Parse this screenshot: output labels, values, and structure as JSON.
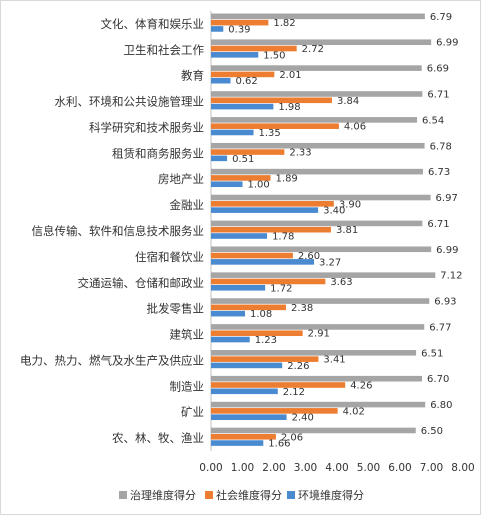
{
  "chart_data": {
    "type": "bar",
    "orientation": "horizontal",
    "categories": [
      "文化、体育和娱乐业",
      "卫生和社会工作",
      "教育",
      "水利、环境和公共设施管理业",
      "科学研究和技术服务业",
      "租赁和商务服务业",
      "房地产业",
      "金融业",
      "信息传输、软件和信息技术服务业",
      "住宿和餐饮业",
      "交通运输、仓储和邮政业",
      "批发零售业",
      "建筑业",
      "电力、热力、燃气及水生产及供应业",
      "制造业",
      "矿业",
      "农、林、牧、渔业"
    ],
    "series": [
      {
        "name": "治理维度得分",
        "color": "#a5a5a5",
        "values": [
          6.79,
          6.99,
          6.69,
          6.71,
          6.54,
          6.78,
          6.73,
          6.97,
          6.71,
          6.99,
          7.12,
          6.93,
          6.77,
          6.51,
          6.7,
          6.8,
          6.5
        ]
      },
      {
        "name": "社会维度得分",
        "color": "#ed7d31",
        "values": [
          1.82,
          2.72,
          2.01,
          3.84,
          4.06,
          2.33,
          1.89,
          3.9,
          3.81,
          2.6,
          3.63,
          2.38,
          2.91,
          3.41,
          4.26,
          4.02,
          2.06
        ]
      },
      {
        "name": "环境维度得分",
        "color": "#4a8ad1",
        "values": [
          0.39,
          1.5,
          0.62,
          1.98,
          1.35,
          0.51,
          1.0,
          3.4,
          1.78,
          3.27,
          1.72,
          1.08,
          1.23,
          2.26,
          2.12,
          2.4,
          1.66
        ]
      }
    ],
    "value_labels": [
      [
        "6.79",
        "6.99",
        "6.69",
        "6.71",
        "6.54",
        "6.78",
        "6.73",
        "6.97",
        "6.71",
        "6.99",
        "7.12",
        "6.93",
        "6.77",
        "6.51",
        "6.70",
        "6.80",
        "6.50"
      ],
      [
        "1.82",
        "2.72",
        "2.01",
        "3.84",
        "4.06",
        "2.33",
        "1.89",
        "3.90",
        "3.81",
        "2.60",
        "3.63",
        "2.38",
        "2.91",
        "3.41",
        "4.26",
        "4.02",
        "2.06"
      ],
      [
        "0.39",
        "1.50",
        "0.62",
        "1.98",
        "1.35",
        "0.51",
        "1.00",
        "3.40",
        "1.78",
        "3.27",
        "1.72",
        "1.08",
        "1.23",
        "2.26",
        "2.12",
        "2.40",
        "1.66"
      ]
    ],
    "xlim": [
      0,
      8
    ],
    "xticks": [
      "0.00",
      "1.00",
      "2.00",
      "3.00",
      "4.00",
      "5.00",
      "6.00",
      "7.00",
      "8.00"
    ],
    "legend_position": "bottom",
    "grid": false
  }
}
